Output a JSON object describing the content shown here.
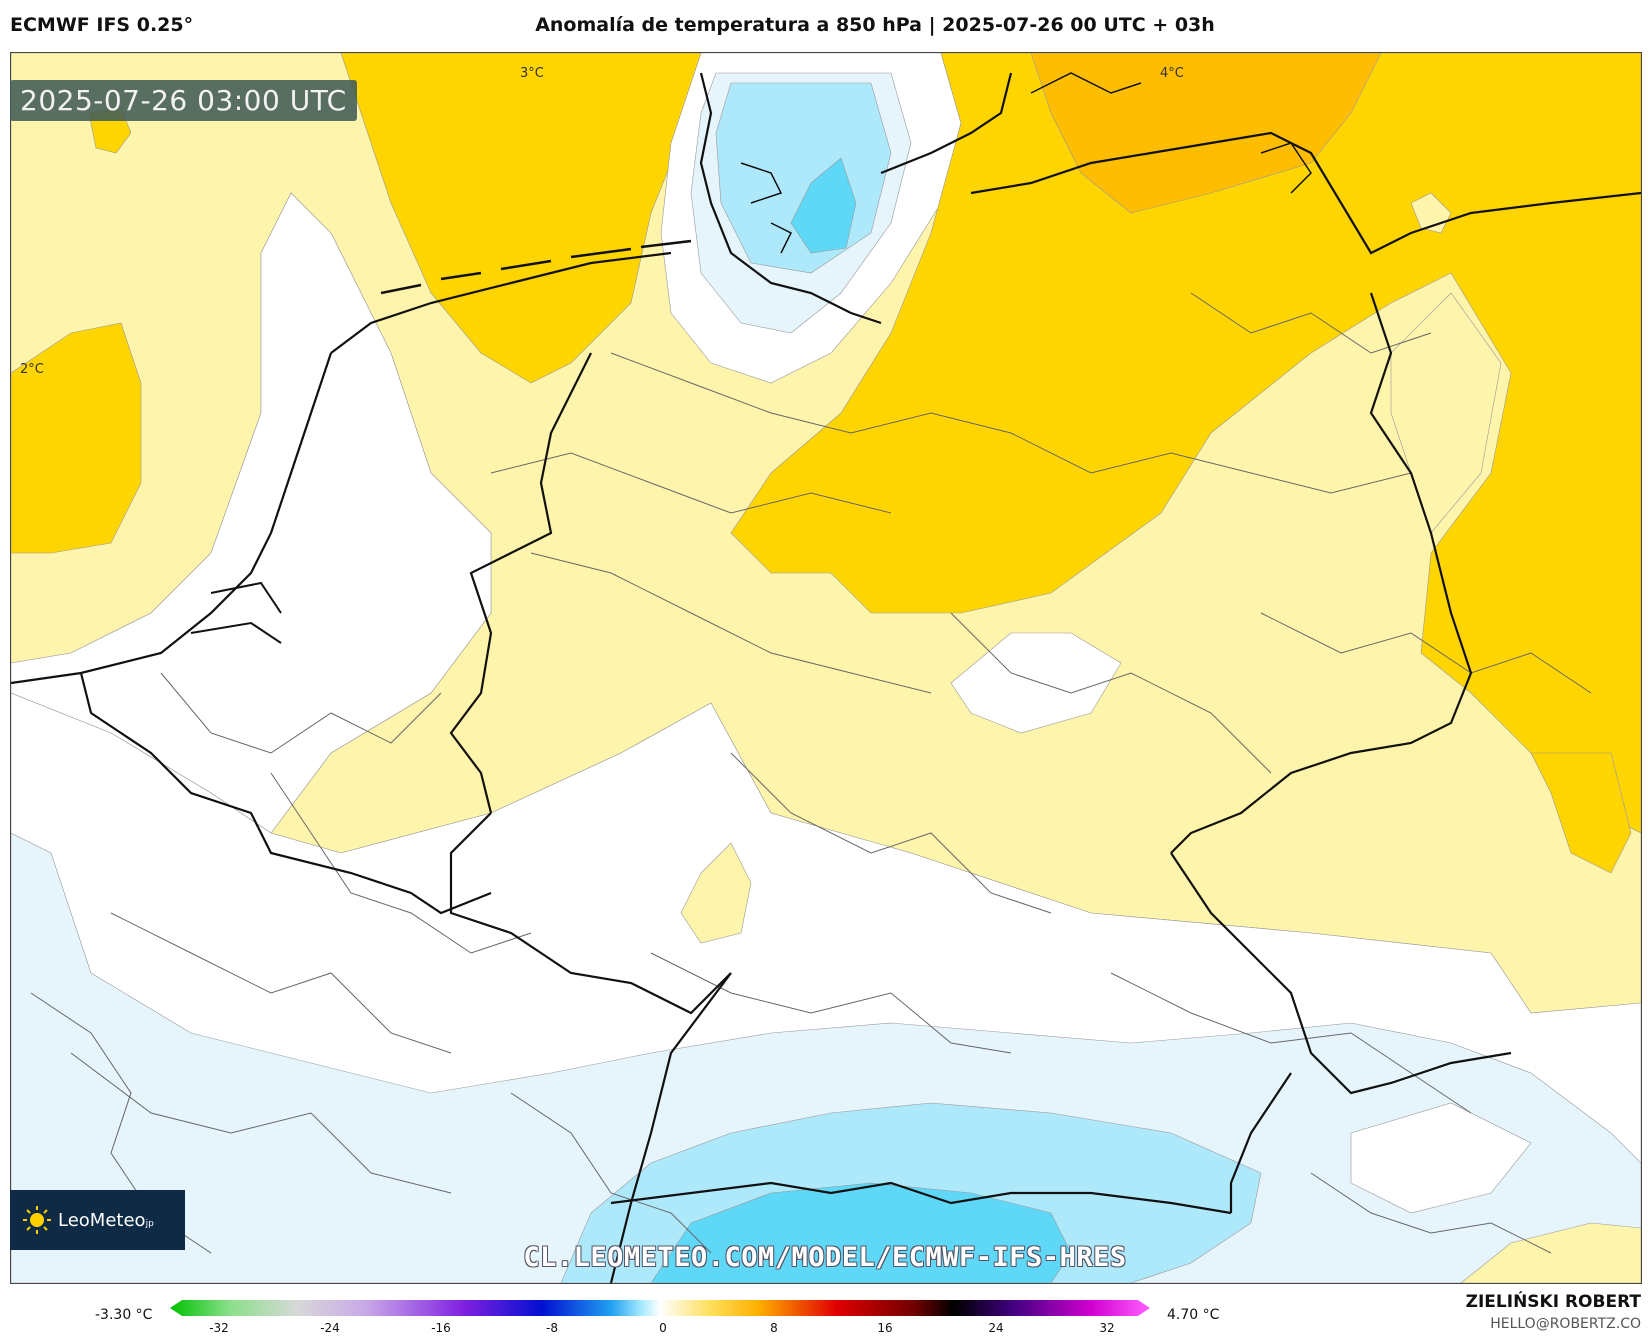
{
  "header": {
    "model": "ECMWF IFS 0.25°",
    "title": "Anomalía de temperatura a 850 hPa | 2025-07-26 00 UTC + 03h"
  },
  "map": {
    "timestamp": "2025-07-26 03:00 UTC",
    "contour_labels": [
      "3°C",
      "4°C",
      "2°C"
    ],
    "fill_colors": {
      "light_cyan": "#aee9fb",
      "cyan": "#5fd8f7",
      "pale_blue": "#e6f4fc",
      "white": "#ffffff",
      "pale_yellow": "#fff4ab",
      "yellow": "#ffd500",
      "orange": "#ffbd00"
    }
  },
  "branding": {
    "logo_name": "LeoMeteo",
    "logo_suffix": "jp",
    "logo_icon": "sun-icon",
    "url": "CL.LEOMETEO.COM/MODEL/ECMWF-IFS-HRES",
    "author": "ZIELIŃSKI ROBERT",
    "email": "HELLO@ROBERTZ.CO"
  },
  "colorbar": {
    "min_label": "-3.30 °C",
    "max_label": "4.70 °C",
    "ticks": [
      "-32",
      "-24",
      "-16",
      "-8",
      "0",
      "8",
      "16",
      "24",
      "32"
    ]
  }
}
